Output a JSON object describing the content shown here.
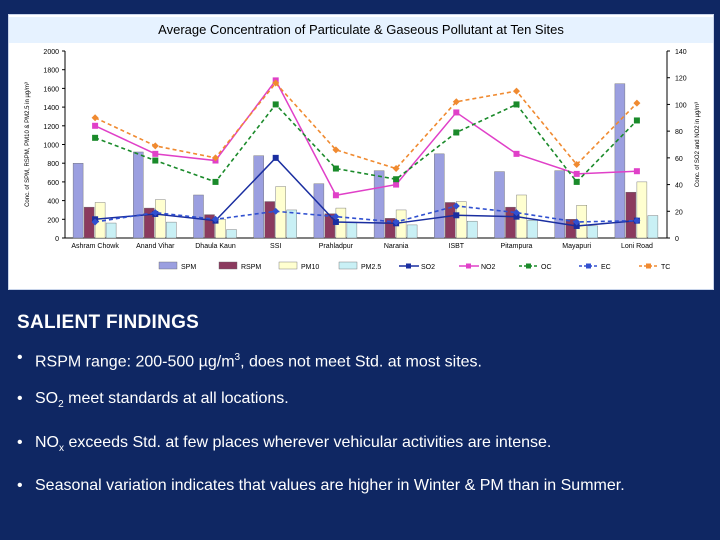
{
  "chart_data": {
    "type": "bar",
    "title": "Average Concentration of Particulate & Gaseous Pollutant at Ten Sites",
    "ylabel_left": "Conc. of SPM, RSPM, PM10 & PM2.5 in µg/m³",
    "ylabel_right": "Conc. of SO2 and NO2 in µg/m³",
    "ylim_left": [
      0,
      2000
    ],
    "ylim_right": [
      0,
      140
    ],
    "yticks_left": [
      "0",
      "200",
      "400",
      "600",
      "800",
      "1000",
      "1200",
      "1400",
      "1600",
      "1800",
      "2000"
    ],
    "yticks_right": [
      "0",
      "20",
      "40",
      "60",
      "80",
      "100",
      "120",
      "140"
    ],
    "categories": [
      "Ashram Chowk",
      "Anand Vihar",
      "Dhaula Kaun",
      "SSI",
      "Prahladpur",
      "Narania",
      "ISBT",
      "Pitampura",
      "Mayapuri",
      "Loni Road"
    ],
    "bar_series": [
      {
        "name": "SPM",
        "color": "#9b9fe0",
        "values": [
          800,
          920,
          460,
          880,
          580,
          720,
          900,
          710,
          720,
          1650
        ]
      },
      {
        "name": "RSPM",
        "color": "#8b3a5e",
        "values": [
          330,
          320,
          250,
          390,
          260,
          210,
          380,
          330,
          200,
          490
        ]
      },
      {
        "name": "PM10",
        "color": "#ffffd0",
        "values": [
          380,
          410,
          200,
          550,
          320,
          300,
          390,
          460,
          350,
          600
        ]
      },
      {
        "name": "PM2.5",
        "color": "#c9f0f5",
        "values": [
          160,
          170,
          90,
          300,
          170,
          140,
          180,
          190,
          130,
          240
        ]
      }
    ],
    "line_series": [
      {
        "name": "SO2",
        "color": "#1a2ea0",
        "dash": "solid",
        "marker": "square",
        "values": [
          14,
          18,
          13,
          60,
          12,
          11,
          17,
          16,
          9,
          13
        ]
      },
      {
        "name": "NO2",
        "color": "#e040c8",
        "dash": "solid",
        "marker": "square",
        "values": [
          84,
          63,
          58,
          118,
          32,
          40,
          94,
          63,
          48,
          50
        ]
      },
      {
        "name": "OC",
        "color": "#1a8a2a",
        "dash": "dashed",
        "marker": "square",
        "values": [
          75,
          58,
          42,
          100,
          52,
          44,
          79,
          100,
          42,
          88
        ]
      },
      {
        "name": "EC",
        "color": "#3050d0",
        "dash": "dashed",
        "marker": "diamond",
        "values": [
          12,
          19,
          14,
          20,
          16,
          12,
          24,
          19,
          12,
          13
        ]
      },
      {
        "name": "TC",
        "color": "#f08a30",
        "dash": "dashed",
        "marker": "diamond",
        "values": [
          90,
          69,
          60,
          116,
          66,
          52,
          102,
          110,
          55,
          101
        ]
      }
    ]
  },
  "findings": {
    "heading": "SALIENT FINDINGS",
    "bullet": "•",
    "items": [
      {
        "pre": "RSPM range: 200-500 µg/m",
        "sup": "3",
        "sub": "",
        "post": ", does not meet Std. at most sites."
      },
      {
        "pre": "SO",
        "sup": "",
        "sub": "2",
        "post": " meet standards at all locations."
      },
      {
        "pre": "NO",
        "sup": "",
        "sub": "x",
        "post": "  exceeds Std. at few places wherever vehicular activities are intense."
      },
      {
        "pre": "Seasonal variation indicates that values are higher in Winter & PM than in Summer.",
        "sup": "",
        "sub": "",
        "post": ""
      }
    ]
  }
}
